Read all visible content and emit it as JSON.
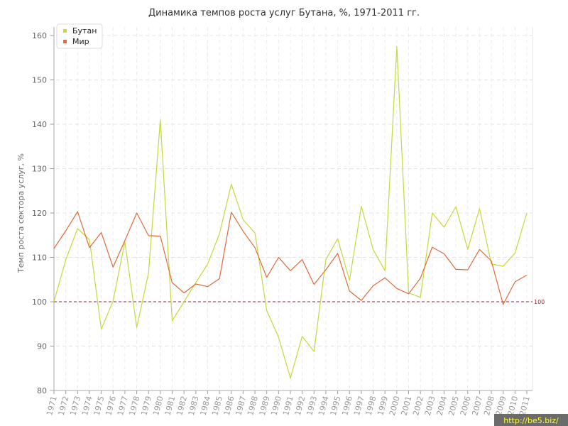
{
  "chart_data": {
    "type": "line",
    "title": "Динамика темпов роста услуг Бутана, %, 1971-2011 гг.",
    "ylabel": "Темп роста сектора услуг, %",
    "xlabel": "",
    "ylim": [
      80,
      160
    ],
    "yticks": [
      80,
      90,
      100,
      110,
      120,
      130,
      140,
      150,
      160
    ],
    "grid": true,
    "legend_position": "top-left",
    "x": [
      "1971",
      "1972",
      "1973",
      "1974",
      "1975",
      "1976",
      "1977",
      "1978",
      "1979",
      "1980",
      "1981",
      "1982",
      "1983",
      "1984",
      "1985",
      "1986",
      "1987",
      "1988",
      "1989",
      "1990",
      "1991",
      "1992",
      "1993",
      "1994",
      "1995",
      "1996",
      "1997",
      "1998",
      "1999",
      "2000",
      "2001",
      "2002",
      "2003",
      "2004",
      "2005",
      "2006",
      "2007",
      "2008",
      "2009",
      "2010",
      "2011"
    ],
    "series": [
      {
        "name": "Бутан",
        "color": "#c3d93f",
        "values": [
          100,
          109.5,
          116.5,
          114,
          93.8,
          100.2,
          113.5,
          94.2,
          106.5,
          141,
          95.7,
          100,
          104.3,
          108.5,
          115.3,
          126.5,
          118.5,
          115.5,
          98,
          92,
          82.8,
          92.2,
          88.8,
          109.5,
          114.2,
          104.8,
          121.5,
          111.8,
          107,
          157.5,
          102,
          101,
          120,
          116.8,
          121.4,
          111.8,
          121,
          108.5,
          108,
          111,
          120
        ]
      },
      {
        "name": "Мир",
        "color": "#e06a3c",
        "values": [
          112,
          116,
          120.3,
          112.2,
          115.6,
          107.8,
          113.8,
          120,
          114.9,
          114.8,
          104.3,
          102,
          104,
          103.4,
          105.2,
          120.2,
          115.9,
          112.2,
          105.5,
          110,
          107,
          109.5,
          103.9,
          107.2,
          110.9,
          102.4,
          100.3,
          103.6,
          105.4,
          103,
          101.8,
          105.3,
          112.3,
          110.8,
          107.3,
          107.2,
          111.8,
          109.2,
          99.4,
          104.5,
          106
        ]
      }
    ],
    "reference_line": {
      "value": 100,
      "label": "100",
      "color": "#8b2a3a"
    }
  },
  "watermark": "http://be5.biz/"
}
